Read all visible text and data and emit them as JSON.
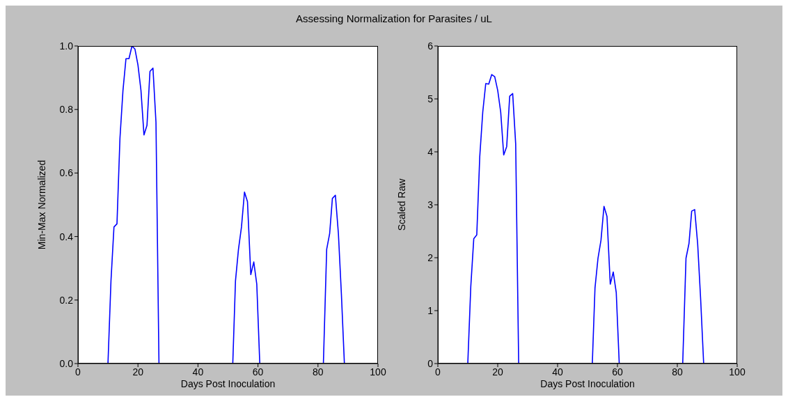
{
  "chart_data": [
    {
      "type": "line",
      "title": "Assessing Normalization for Parasites / uL",
      "xlabel": "Days Post Inoculation",
      "ylabel": "Min-Max Normalized",
      "x": [
        0,
        10,
        11,
        12,
        13,
        14,
        15,
        16,
        17,
        18,
        19,
        20,
        21,
        22,
        23,
        24,
        25,
        26,
        27,
        51.6,
        52.5,
        53.5,
        54.5,
        55.5,
        56.5,
        57.6,
        58.6,
        59.6,
        60.6,
        81.8,
        82.9,
        83.9,
        84.8,
        85.8,
        86.8,
        87.8,
        88.8,
        100
      ],
      "series": [
        {
          "color": "#0000ff",
          "values": [
            0,
            0,
            0.26,
            0.43,
            0.44,
            0.71,
            0.86,
            0.96,
            0.96,
            1.0,
            0.99,
            0.94,
            0.86,
            0.72,
            0.75,
            0.92,
            0.93,
            0.76,
            0,
            0,
            0.26,
            0.36,
            0.43,
            0.54,
            0.51,
            0.28,
            0.32,
            0.25,
            0,
            0,
            0.36,
            0.41,
            0.52,
            0.53,
            0.41,
            0.22,
            0,
            0
          ]
        }
      ],
      "xlim": [
        0,
        100
      ],
      "xticks": [
        0,
        20,
        40,
        60,
        80,
        100
      ],
      "ylim": [
        0,
        1
      ],
      "yticks": [
        {
          "value": 0,
          "label": "0.0"
        },
        {
          "value": 0.2,
          "label": "0.2"
        },
        {
          "value": 0.4,
          "label": "0.4"
        },
        {
          "value": 0.6,
          "label": "0.6"
        },
        {
          "value": 0.8,
          "label": "0.8"
        },
        {
          "value": 1,
          "label": "1.0"
        }
      ],
      "grid": false,
      "legend": false
    },
    {
      "type": "line",
      "xlabel": "Days Post Inoculation",
      "ylabel": "Scaled Raw",
      "x": [
        0,
        10,
        11,
        12,
        13,
        14,
        15,
        16,
        17,
        18,
        19,
        20,
        21,
        22,
        23,
        24,
        25,
        26,
        27,
        51.6,
        52.5,
        53.5,
        54.5,
        55.5,
        56.5,
        57.6,
        58.6,
        59.6,
        60.6,
        81.8,
        82.9,
        83.9,
        84.8,
        85.8,
        86.8,
        87.8,
        88.8,
        100
      ],
      "series": [
        {
          "color": "#0000ff",
          "values": [
            0,
            0,
            1.45,
            2.36,
            2.43,
            3.91,
            4.75,
            5.29,
            5.28,
            5.46,
            5.42,
            5.16,
            4.75,
            3.94,
            4.1,
            5.05,
            5.1,
            4.15,
            0,
            0,
            1.43,
            1.99,
            2.33,
            2.97,
            2.78,
            1.5,
            1.73,
            1.34,
            0,
            0,
            1.99,
            2.27,
            2.88,
            2.91,
            2.26,
            1.21,
            0,
            0
          ]
        }
      ],
      "xlim": [
        0,
        100
      ],
      "xticks": [
        0,
        20,
        40,
        60,
        80,
        100
      ],
      "ylim": [
        0,
        6
      ],
      "yticks": [
        0,
        1,
        2,
        3,
        4,
        5,
        6
      ],
      "grid": false,
      "legend": false
    }
  ]
}
